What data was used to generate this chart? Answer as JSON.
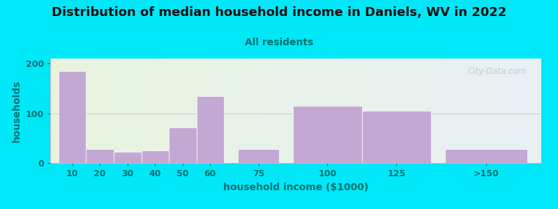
{
  "title": "Distribution of median household income in Daniels, WV in 2022",
  "subtitle": "All residents",
  "xlabel": "household income ($1000)",
  "ylabel": "households",
  "bar_labels": [
    "10",
    "20",
    "30",
    "40",
    "50",
    "60",
    "75",
    "100",
    "125",
    ">150"
  ],
  "bar_values": [
    185,
    28,
    22,
    25,
    72,
    135,
    28,
    115,
    105,
    28
  ],
  "bar_color": "#c4a8d4",
  "bar_widths": [
    1,
    1,
    1,
    1,
    1,
    1,
    1.5,
    2.5,
    2.5,
    3
  ],
  "bar_positions": [
    0,
    1,
    2,
    3,
    4,
    5,
    6.5,
    8.5,
    11,
    14
  ],
  "ylim": [
    0,
    210
  ],
  "yticks": [
    0,
    100,
    200
  ],
  "background_outer": "#00e8f8",
  "title_fontsize": 13,
  "subtitle_fontsize": 10,
  "axis_label_fontsize": 10,
  "tick_fontsize": 9,
  "watermark_text": "City-Data.com",
  "title_color": "#111111",
  "subtitle_color": "#007070",
  "axis_label_color": "#007070",
  "tick_color": "#007070"
}
